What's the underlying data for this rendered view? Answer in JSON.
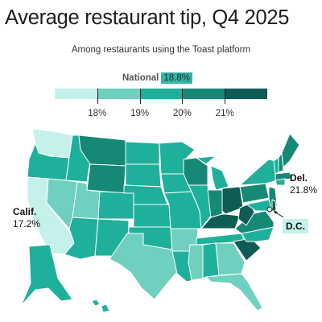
{
  "title": "Average restaurant tip, Q4 2025",
  "subtitle": "Among restaurants using the Toast platform",
  "national": {
    "label": "National",
    "value": "18.8%"
  },
  "legend": {
    "bins": [
      {
        "color": "#c4f1ea"
      },
      {
        "color": "#6fd0c0"
      },
      {
        "color": "#1eb09a"
      },
      {
        "color": "#168876"
      },
      {
        "color": "#0f5c54"
      }
    ],
    "ticks": [
      "18%",
      "19%",
      "20%",
      "21%"
    ]
  },
  "callouts": {
    "calif": {
      "state": "Calif.",
      "value": "17.2%"
    },
    "del": {
      "state": "Del.",
      "value": "21.8%"
    },
    "dc": {
      "state": "D.C."
    }
  },
  "icons": {
    "arrow": "callout-arrow-icon"
  }
}
